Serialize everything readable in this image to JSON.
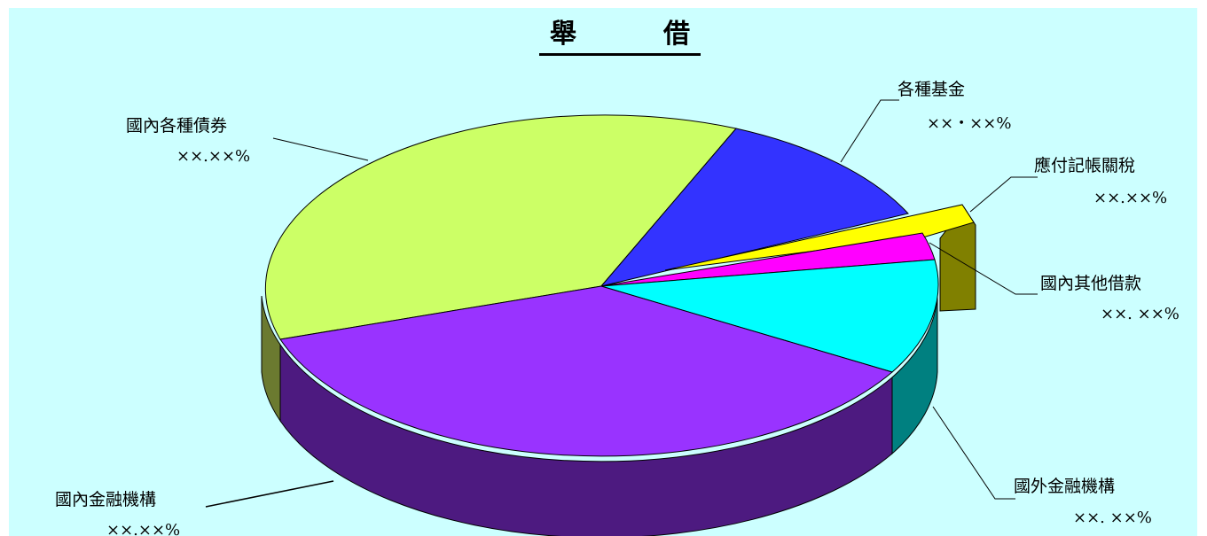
{
  "chart_data": {
    "type": "pie",
    "title": "舉　　借",
    "slices": [
      {
        "name": "國內各種債券",
        "value_label": "××.××%",
        "value": 36,
        "color": "#ccff66"
      },
      {
        "name": "各種基金",
        "value_label": "××・××%",
        "value": 12,
        "color": "#3333ff"
      },
      {
        "name": "應付記帳關稅",
        "value_label": "××.××%",
        "value": 2,
        "color": "#ffff00"
      },
      {
        "name": "國內其他借款",
        "value_label": "××. ××%",
        "value": 3,
        "color": "#ff00ff"
      },
      {
        "name": "國外金融機構",
        "value_label": "××. ××%",
        "value": 10,
        "color": "#00ffff"
      },
      {
        "name": "國內金融機構",
        "value_label": "××.××%",
        "value": 37,
        "color": "#9933ff"
      }
    ],
    "background": "#ccffff"
  }
}
